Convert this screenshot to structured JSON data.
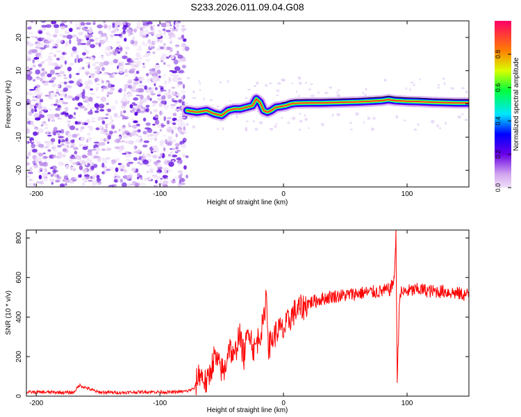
{
  "title": "S233.2026.011.09.04.G08",
  "chart_data": [
    {
      "type": "heatmap",
      "name": "spectrogram",
      "xlabel": "Height of straight line (km)",
      "ylabel": "Frequency (Hz)",
      "xlim": [
        -208,
        150
      ],
      "ylim": [
        -25,
        25
      ],
      "xticks": [
        -200,
        -100,
        0,
        100
      ],
      "yticks": [
        -20,
        -10,
        0,
        10,
        20
      ],
      "noise_region_end_km": -78,
      "signal_trace": {
        "x": [
          -78,
          -70,
          -62,
          -56,
          -50,
          -45,
          -40,
          -35,
          -30,
          -25,
          -22,
          -19,
          -16,
          -13,
          -10,
          -6,
          -2,
          2,
          6,
          10,
          20,
          30,
          40,
          50,
          60,
          70,
          80,
          85,
          90,
          100,
          110,
          120,
          130,
          140,
          150
        ],
        "y": [
          -2,
          -2.5,
          -2,
          -3,
          -3.5,
          -2,
          -1.5,
          -1.5,
          -1,
          -0.5,
          1.5,
          0.5,
          -2,
          -2.5,
          -2,
          -1,
          -0.8,
          -0.5,
          0,
          0.2,
          0.3,
          0.3,
          0.4,
          0.5,
          0.6,
          0.8,
          1.0,
          1.3,
          1.0,
          0.8,
          0.7,
          0.5,
          0.4,
          0.3,
          0.3
        ]
      },
      "colorbar": {
        "label": "Normalized spectral amplitude",
        "ticks": [
          "0.0",
          "0.2",
          "0.4",
          "0.6",
          "0.8"
        ],
        "range": [
          0,
          1
        ]
      }
    },
    {
      "type": "line",
      "name": "snr",
      "xlabel": "Height of straight line (km)",
      "ylabel": "SNR (10 * v/v)",
      "xlim": [
        -208,
        150
      ],
      "ylim": [
        0,
        840
      ],
      "xticks": [
        -200,
        -100,
        0,
        100
      ],
      "yticks": [
        0,
        200,
        400,
        600,
        800
      ],
      "color": "#ff0000",
      "series": [
        {
          "name": "SNR",
          "x": [
            -208,
            -190,
            -170,
            -165,
            -150,
            -130,
            -110,
            -90,
            -78,
            -72,
            -68,
            -62,
            -56,
            -52,
            -48,
            -44,
            -40,
            -36,
            -32,
            -28,
            -24,
            -20,
            -16,
            -14,
            -12,
            -8,
            -4,
            0,
            4,
            8,
            12,
            16,
            20,
            25,
            30,
            40,
            50,
            60,
            70,
            80,
            86,
            88,
            90,
            91,
            92,
            94,
            100,
            110,
            120,
            130,
            140,
            150
          ],
          "y": [
            20,
            20,
            18,
            55,
            20,
            18,
            22,
            20,
            25,
            40,
            120,
            60,
            200,
            150,
            120,
            260,
            180,
            320,
            200,
            350,
            230,
            300,
            370,
            530,
            250,
            300,
            340,
            330,
            380,
            420,
            440,
            450,
            470,
            480,
            490,
            505,
            510,
            520,
            525,
            530,
            540,
            560,
            620,
            840,
            70,
            520,
            530,
            540,
            530,
            530,
            520,
            510
          ]
        }
      ]
    }
  ]
}
